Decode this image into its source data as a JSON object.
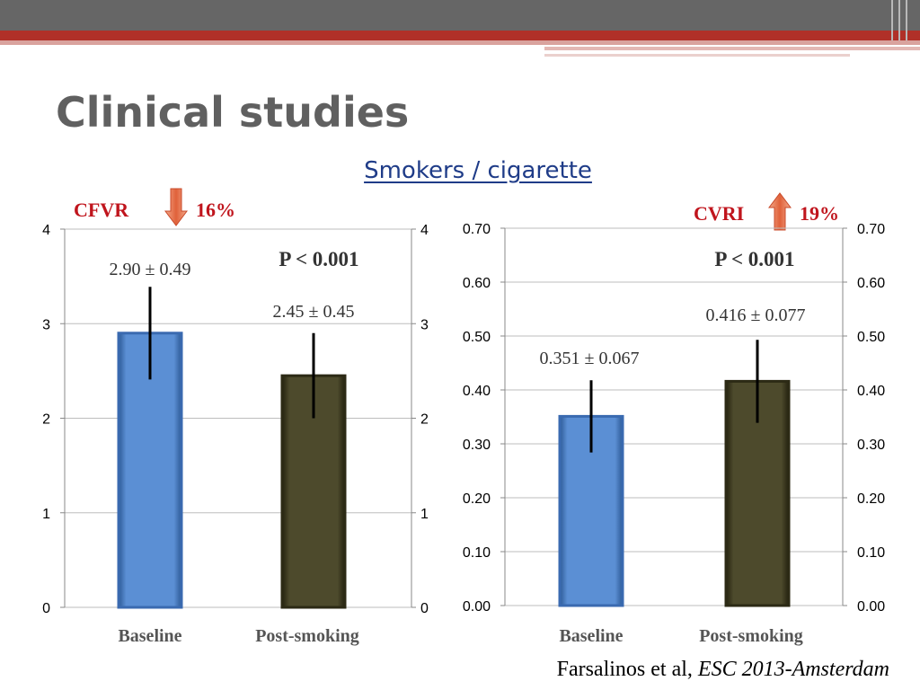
{
  "slide": {
    "title": "Clinical studies",
    "subtitle": "Smokers / cigarette",
    "citation_authors": "Farsalinos et al, ",
    "citation_venue": "ESC 2013-Amsterdam"
  },
  "colors": {
    "top_band": "#666666",
    "accent_red": "#b03028",
    "baseline_bar": "#5b8fd4",
    "post_smoking_bar": "#4d4a2c",
    "title_gray": "#606060",
    "subtitle_blue": "#1f3c88",
    "label_red": "#c0151d"
  },
  "panels": [
    {
      "metric_label": "CFVR",
      "change_percent": "16%",
      "direction_icon": "arrow-down-icon"
    },
    {
      "metric_label": "CVRI",
      "change_percent": "19%",
      "direction_icon": "arrow-up-icon"
    }
  ],
  "chart_data": [
    {
      "type": "bar",
      "categories": [
        "Baseline",
        "Post-smoking"
      ],
      "values": [
        2.9,
        2.45
      ],
      "errors": [
        0.49,
        0.45
      ],
      "value_labels": [
        "2.90 ± 0.49",
        "2.45 ± 0.45"
      ],
      "annotation": "P < 0.001",
      "ylim": [
        0,
        4
      ],
      "yticks": [
        "0",
        "1",
        "2",
        "3",
        "4"
      ],
      "ytick_values": [
        0,
        1,
        2,
        3,
        4
      ],
      "secondary_axis": true,
      "grid": true,
      "bar_colors": [
        "#5b8fd4",
        "#4d4a2c"
      ]
    },
    {
      "type": "bar",
      "categories": [
        "Baseline",
        "Post-smoking"
      ],
      "values": [
        0.351,
        0.416
      ],
      "errors": [
        0.067,
        0.077
      ],
      "value_labels": [
        "0.351 ± 0.067",
        "0.416 ± 0.077"
      ],
      "annotation": "P < 0.001",
      "ylim": [
        0,
        0.7
      ],
      "yticks": [
        "0.00",
        "0.10",
        "0.20",
        "0.30",
        "0.40",
        "0.50",
        "0.60",
        "0.70"
      ],
      "ytick_values": [
        0,
        0.1,
        0.2,
        0.3,
        0.4,
        0.5,
        0.6,
        0.7
      ],
      "secondary_axis": true,
      "grid": true,
      "bar_colors": [
        "#5b8fd4",
        "#4d4a2c"
      ]
    }
  ]
}
